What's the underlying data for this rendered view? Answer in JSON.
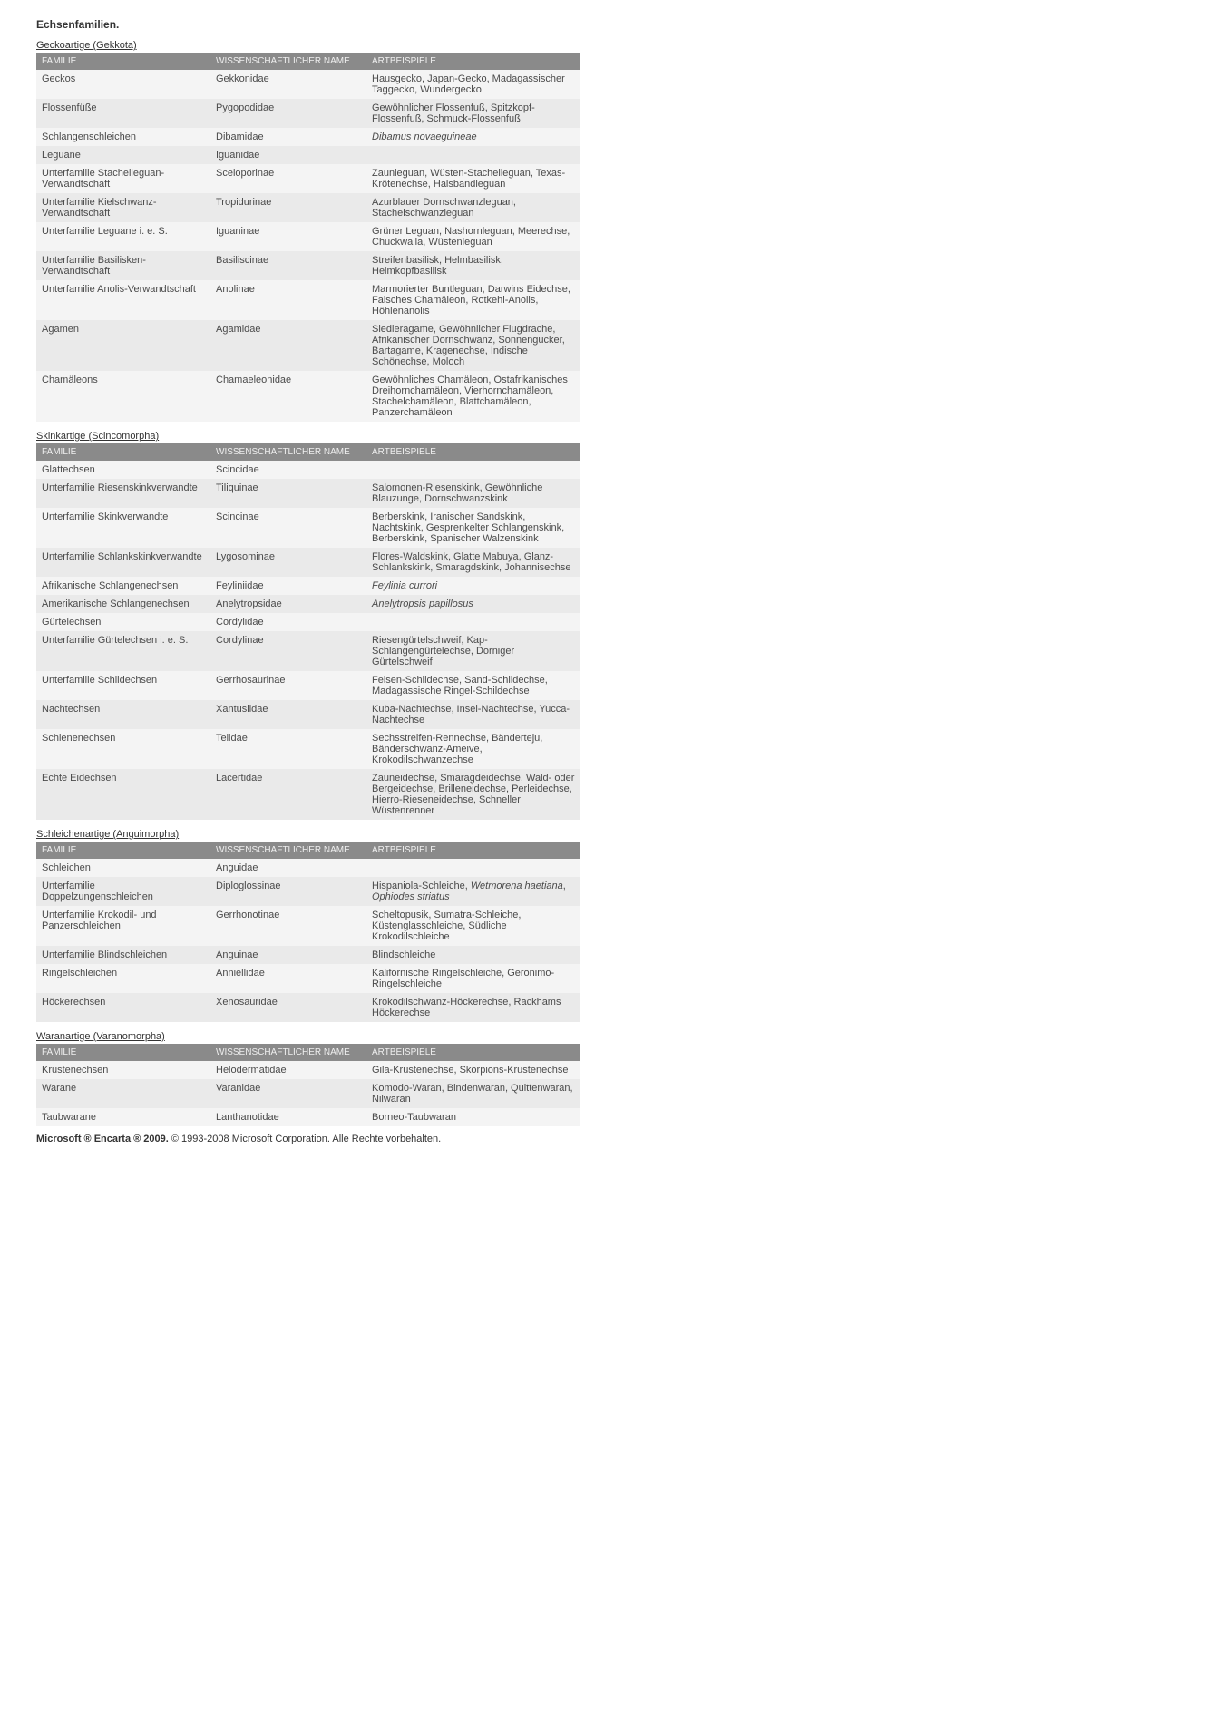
{
  "title": "Echsenfamilien.",
  "columns": [
    "FAMILIE",
    "WISSENSCHAFTLICHER NAME",
    "ARTBEISPIELE"
  ],
  "sections": [
    {
      "caption": "Geckoartige (Gekkota)",
      "rows": [
        {
          "fam": "Geckos",
          "sci": "Gekkonidae",
          "ex": "Hausgecko, Japan-Gecko, Madagassischer Taggecko, Wundergecko"
        },
        {
          "fam": "Flossenfüße",
          "sci": "Pygopodidae",
          "ex": "Gewöhnlicher Flossenfuß, Spitzkopf-Flossenfuß, Schmuck-Flossenfuß"
        },
        {
          "fam": "Schlangenschleichen",
          "sci": "Dibamidae",
          "ex_italic": "Dibamus novaeguineae"
        },
        {
          "fam": "Leguane",
          "sci": "Iguanidae",
          "ex": ""
        },
        {
          "fam": "Unterfamilie Stachelleguan-Verwandtschaft",
          "sci": "Sceloporinae",
          "ex": "Zaunleguan, Wüsten-Stachelleguan, Texas-Krötenechse, Halsbandleguan"
        },
        {
          "fam": "Unterfamilie Kielschwanz-Verwandtschaft",
          "sci": "Tropidurinae",
          "ex": "Azurblauer Dornschwanzleguan, Stachelschwanzleguan"
        },
        {
          "fam": "Unterfamilie Leguane i. e. S.",
          "sci": "Iguaninae",
          "ex": "Grüner Leguan, Nashornleguan, Meerechse, Chuckwalla, Wüstenleguan"
        },
        {
          "fam": "Unterfamilie Basilisken-Verwandtschaft",
          "sci": "Basiliscinae",
          "ex": "Streifenbasilisk, Helmbasilisk, Helmkopfbasilisk"
        },
        {
          "fam": "Unterfamilie Anolis-Verwandtschaft",
          "sci": "Anolinae",
          "ex": "Marmorierter Buntleguan, Darwins Eidechse, Falsches Chamäleon, Rotkehl-Anolis, Höhlenanolis"
        },
        {
          "fam": "Agamen",
          "sci": "Agamidae",
          "ex": "Siedleragame, Gewöhnlicher Flugdrache, Afrikanischer Dornschwanz, Sonnengucker, Bartagame, Kragenechse, Indische Schönechse, Moloch"
        },
        {
          "fam": "Chamäleons",
          "sci": "Chamaeleonidae",
          "ex": "Gewöhnliches Chamäleon, Ostafrikanisches Dreihornchamäleon, Vierhornchamäleon, Stachelchamäleon, Blattchamäleon, Panzerchamäleon"
        }
      ]
    },
    {
      "caption": "Skinkartige (Scincomorpha)",
      "rows": [
        {
          "fam": "Glattechsen",
          "sci": "Scincidae",
          "ex": ""
        },
        {
          "fam": "Unterfamilie Riesenskinkverwandte",
          "sci": "Tiliquinae",
          "ex": "Salomonen-Riesenskink, Gewöhnliche Blauzunge, Dornschwanzskink"
        },
        {
          "fam": "Unterfamilie Skinkverwandte",
          "sci": "Scincinae",
          "ex": "Berberskink, Iranischer Sandskink, Nachtskink, Gesprenkelter Schlangenskink, Berberskink, Spanischer Walzenskink"
        },
        {
          "fam": "Unterfamilie Schlankskinkverwandte",
          "sci": "Lygosominae",
          "ex": "Flores-Waldskink, Glatte Mabuya, Glanz-Schlankskink, Smaragdskink, Johannisechse"
        },
        {
          "fam": "Afrikanische Schlangenechsen",
          "sci": "Feyliniidae",
          "ex_italic": "Feylinia currori"
        },
        {
          "fam": "Amerikanische Schlangenechsen",
          "sci": "Anelytropsidae",
          "ex_italic": "Anelytropsis papillosus"
        },
        {
          "fam": "Gürtelechsen",
          "sci": "Cordylidae",
          "ex": ""
        },
        {
          "fam": "Unterfamilie Gürtelechsen i. e. S.",
          "sci": "Cordylinae",
          "ex": "Riesengürtelschweif, Kap-Schlangengürtelechse, Dorniger Gürtelschweif"
        },
        {
          "fam": "Unterfamilie Schildechsen",
          "sci": "Gerrhosaurinae",
          "ex": "Felsen-Schildechse, Sand-Schildechse, Madagassische Ringel-Schildechse"
        },
        {
          "fam": "Nachtechsen",
          "sci": "Xantusiidae",
          "ex": "Kuba-Nachtechse, Insel-Nachtechse, Yucca-Nachtechse"
        },
        {
          "fam": "Schienenechsen",
          "sci": "Teiidae",
          "ex": "Sechsstreifen-Rennechse, Bänderteju, Bänderschwanz-Ameive, Krokodilschwanzechse"
        },
        {
          "fam": "Echte Eidechsen",
          "sci": "Lacertidae",
          "ex": "Zauneidechse, Smaragdeidechse, Wald- oder Bergeidechse, Brilleneidechse, Perleidechse, Hierro-Rieseneidechse, Schneller Wüstenrenner"
        }
      ]
    },
    {
      "caption": "Schleichenartige (Anguimorpha)",
      "rows": [
        {
          "fam": "Schleichen",
          "sci": "Anguidae",
          "ex": ""
        },
        {
          "fam": "Unterfamilie Doppelzungenschleichen",
          "sci": "Diploglossinae",
          "ex_mixed": [
            {
              "t": "Hispaniola-Schleiche, "
            },
            {
              "i": "Wetmorena haetiana"
            },
            {
              "t": ", "
            },
            {
              "i": "Ophiodes striatus"
            }
          ]
        },
        {
          "fam": "Unterfamilie Krokodil- und Panzerschleichen",
          "sci": "Gerrhonotinae",
          "ex": "Scheltopusik, Sumatra-Schleiche, Küstenglasschleiche, Südliche Krokodilschleiche"
        },
        {
          "fam": "Unterfamilie Blindschleichen",
          "sci": "Anguinae",
          "ex": "Blindschleiche"
        },
        {
          "fam": "Ringelschleichen",
          "sci": "Anniellidae",
          "ex": "Kalifornische Ringelschleiche, Geronimo-Ringelschleiche"
        },
        {
          "fam": "Höckerechsen",
          "sci": "Xenosauridae",
          "ex": "Krokodilschwanz-Höckerechse, Rackhams Höckerechse"
        }
      ]
    },
    {
      "caption": "Waranartige (Varanomorpha)",
      "rows": [
        {
          "fam": "Krustenechsen",
          "sci": "Helodermatidae",
          "ex": "Gila-Krustenechse, Skorpions-Krustenechse"
        },
        {
          "fam": "Warane",
          "sci": "Varanidae",
          "ex": "Komodo-Waran, Bindenwaran, Quittenwaran, Nilwaran"
        },
        {
          "fam": "Taubwarane",
          "sci": "Lanthanotidae",
          "ex": "Borneo-Taubwaran"
        }
      ]
    }
  ],
  "footer_bold": "Microsoft ® Encarta ® 2009.",
  "footer_rest": " © 1993-2008 Microsoft Corporation. Alle Rechte vorbehalten."
}
